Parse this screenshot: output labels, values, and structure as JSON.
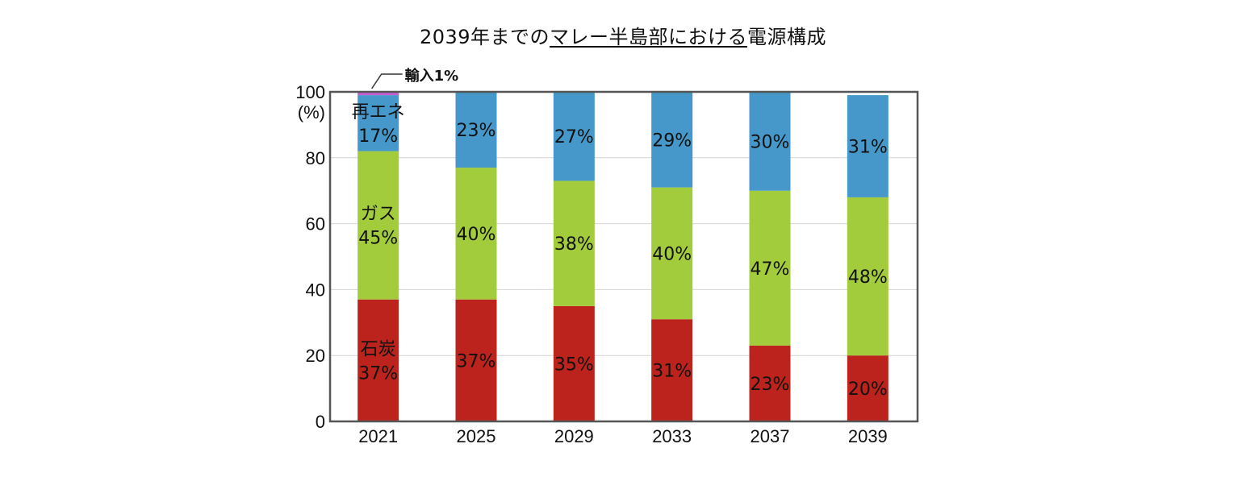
{
  "chart_data": {
    "type": "bar",
    "stacked": true,
    "title_parts": [
      {
        "text": "2039年までの",
        "underline": false
      },
      {
        "text": "マレー半島部における",
        "underline": true
      },
      {
        "text": "電源構成",
        "underline": false
      }
    ],
    "categories": [
      "2021",
      "2025",
      "2029",
      "2033",
      "2037",
      "2039"
    ],
    "series": [
      {
        "name": "石炭",
        "color": "#bb231c",
        "values": [
          37,
          37,
          35,
          31,
          23,
          20
        ]
      },
      {
        "name": "ガス",
        "color": "#a3cc3d",
        "values": [
          45,
          40,
          38,
          40,
          47,
          48
        ]
      },
      {
        "name": "再エネ",
        "color": "#4598c9",
        "values": [
          17,
          23,
          27,
          29,
          30,
          31
        ]
      },
      {
        "name": "輸入",
        "color": "#c65fd3",
        "values": [
          1,
          0,
          0,
          0,
          0,
          0
        ]
      }
    ],
    "segment_labels": [
      [
        "石炭\n37%",
        "ガス\n45%",
        "再エネ\n17%"
      ],
      [
        "37%",
        "40%",
        "23%"
      ],
      [
        "35%",
        "38%",
        "27%"
      ],
      [
        "31%",
        "40%",
        "29%"
      ],
      [
        "23%",
        "47%",
        "30%"
      ],
      [
        "20%",
        "48%",
        "31%"
      ]
    ],
    "annotation": "輸入1%",
    "ylim": [
      0,
      100
    ],
    "y_ticks": [
      "0",
      "20",
      "40",
      "60",
      "80",
      "100"
    ],
    "y_unit": "(%)",
    "grid": true
  }
}
